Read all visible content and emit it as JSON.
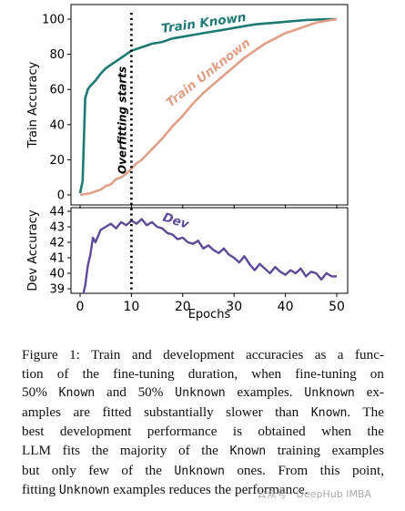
{
  "chart_data": [
    {
      "type": "line",
      "ylabel": "Train Accuracy",
      "xlabel": "",
      "ylim": [
        0,
        100
      ],
      "xlim": [
        0,
        50
      ],
      "yticks": [
        "0",
        "20",
        "40",
        "60",
        "80",
        "100"
      ],
      "annotation": "Overfitting starts",
      "annotation_x": 10,
      "series": [
        {
          "name": "Train Known",
          "color": "#1f7a74",
          "points": [
            [
              0,
              1
            ],
            [
              0.5,
              8
            ],
            [
              1,
              55
            ],
            [
              1.5,
              60
            ],
            [
              2,
              62
            ],
            [
              3,
              65
            ],
            [
              4,
              69
            ],
            [
              5,
              72
            ],
            [
              6,
              74
            ],
            [
              7,
              76
            ],
            [
              8,
              78
            ],
            [
              9,
              80
            ],
            [
              10,
              82
            ],
            [
              12,
              84
            ],
            [
              14,
              86
            ],
            [
              16,
              87
            ],
            [
              18,
              89
            ],
            [
              20,
              90
            ],
            [
              22,
              91
            ],
            [
              24,
              92
            ],
            [
              26,
              93
            ],
            [
              28,
              94
            ],
            [
              30,
              95
            ],
            [
              32,
              96
            ],
            [
              34,
              97
            ],
            [
              36,
              97.5
            ],
            [
              38,
              98
            ],
            [
              40,
              98.5
            ],
            [
              42,
              99
            ],
            [
              44,
              99.5
            ],
            [
              46,
              99.7
            ],
            [
              48,
              100
            ],
            [
              50,
              100
            ]
          ]
        },
        {
          "name": "Train Unknown",
          "color": "#e0a088",
          "points": [
            [
              0,
              0
            ],
            [
              2,
              1
            ],
            [
              4,
              3
            ],
            [
              5,
              5
            ],
            [
              6,
              6
            ],
            [
              7,
              9
            ],
            [
              8,
              10
            ],
            [
              9,
              12
            ],
            [
              10,
              15
            ],
            [
              11,
              18
            ],
            [
              12,
              20
            ],
            [
              13,
              23
            ],
            [
              14,
              26
            ],
            [
              15,
              29
            ],
            [
              16,
              32
            ],
            [
              18,
              39
            ],
            [
              20,
              45
            ],
            [
              22,
              52
            ],
            [
              24,
              58
            ],
            [
              26,
              63
            ],
            [
              28,
              68
            ],
            [
              30,
              73
            ],
            [
              32,
              78
            ],
            [
              34,
              82
            ],
            [
              36,
              86
            ],
            [
              38,
              89
            ],
            [
              40,
              92
            ],
            [
              42,
              94
            ],
            [
              44,
              96
            ],
            [
              46,
              98
            ],
            [
              48,
              99
            ],
            [
              50,
              100
            ]
          ]
        }
      ]
    },
    {
      "type": "line",
      "ylabel": "Dev Accuracy",
      "xlabel": "Epochs",
      "ylim": [
        39,
        44
      ],
      "xlim": [
        0,
        50
      ],
      "xticks": [
        "0",
        "10",
        "20",
        "30",
        "40",
        "50"
      ],
      "yticks": [
        "39",
        "40",
        "41",
        "42",
        "43",
        "44"
      ],
      "series": [
        {
          "name": "Dev",
          "color": "#5e4a96",
          "points": [
            [
              0.5,
              38.5
            ],
            [
              1,
              39.2
            ],
            [
              1.5,
              40.5
            ],
            [
              2,
              41.2
            ],
            [
              2.5,
              42.3
            ],
            [
              3,
              42.0
            ],
            [
              4,
              42.8
            ],
            [
              5,
              43.0
            ],
            [
              6,
              43.2
            ],
            [
              7,
              42.9
            ],
            [
              8,
              43.3
            ],
            [
              9,
              43.1
            ],
            [
              10,
              43.4
            ],
            [
              11,
              43.2
            ],
            [
              12,
              43.5
            ],
            [
              13,
              43.1
            ],
            [
              14,
              43.3
            ],
            [
              15,
              43.0
            ],
            [
              16,
              42.9
            ],
            [
              17,
              42.6
            ],
            [
              18,
              42.5
            ],
            [
              19,
              42.2
            ],
            [
              20,
              42.3
            ],
            [
              21,
              42.0
            ],
            [
              22,
              41.9
            ],
            [
              23,
              42.1
            ],
            [
              24,
              41.6
            ],
            [
              25,
              41.8
            ],
            [
              26,
              41.5
            ],
            [
              27,
              41.3
            ],
            [
              28,
              41.6
            ],
            [
              29,
              41.2
            ],
            [
              30,
              41.0
            ],
            [
              31,
              40.7
            ],
            [
              32,
              41.1
            ],
            [
              33,
              40.6
            ],
            [
              34,
              40.2
            ],
            [
              35,
              40.6
            ],
            [
              36,
              40.3
            ],
            [
              37,
              40.0
            ],
            [
              38,
              40.4
            ],
            [
              39,
              40.1
            ],
            [
              40,
              39.9
            ],
            [
              41,
              40.2
            ],
            [
              42,
              40.0
            ],
            [
              43,
              40.3
            ],
            [
              44,
              39.8
            ],
            [
              45,
              40.1
            ],
            [
              46,
              40.0
            ],
            [
              47,
              39.6
            ],
            [
              48,
              40.0
            ],
            [
              49,
              39.8
            ],
            [
              50,
              39.8
            ]
          ]
        }
      ]
    }
  ],
  "caption": {
    "lines": [
      [
        {
          "t": "Figure 1: Train and development accuracies as a func-"
        }
      ],
      [
        {
          "t": "tion of the fine-tuning duration, when fine-tuning on"
        }
      ],
      [
        {
          "t": "50% "
        },
        {
          "t": "Known",
          "mono": true
        },
        {
          "t": " and 50% "
        },
        {
          "t": "Unknown",
          "mono": true
        },
        {
          "t": " examples. "
        },
        {
          "t": "Unknown",
          "mono": true
        },
        {
          "t": " ex-"
        }
      ],
      [
        {
          "t": "amples are fitted substantially slower than "
        },
        {
          "t": "Known",
          "mono": true
        },
        {
          "t": ". The"
        }
      ],
      [
        {
          "t": "best development performance is obtained when the"
        }
      ],
      [
        {
          "t": "LLM fits the majority of the "
        },
        {
          "t": "Known",
          "mono": true
        },
        {
          "t": " training examples"
        }
      ],
      [
        {
          "t": "but only few of the "
        },
        {
          "t": "Unknown",
          "mono": true
        },
        {
          "t": " ones.  From this point,"
        }
      ],
      [
        {
          "t": "fitting "
        },
        {
          "t": "Unknown",
          "mono": true
        },
        {
          "t": " examples reduces the performance."
        }
      ]
    ]
  },
  "watermark": "公众号 · DeepHub IMBA"
}
